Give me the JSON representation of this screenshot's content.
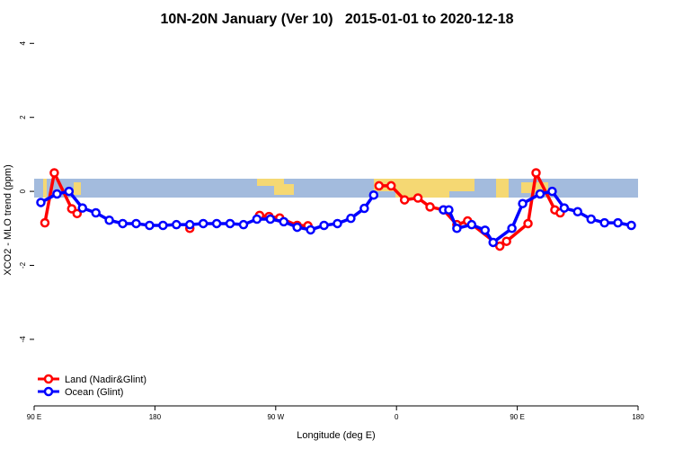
{
  "chart_data": {
    "type": "line",
    "title": "10N-20N January (Ver 10)   2015-01-01 to 2020-12-18",
    "xlabel": "Longitude (deg E)",
    "ylabel": "XCO2 - MLO trend (ppm)",
    "xlim": [
      90,
      540
    ],
    "xticks": [
      {
        "value": 90,
        "label": "90 E"
      },
      180,
      {
        "value": 270,
        "label": "90 W"
      },
      {
        "value": 360,
        "label": "0"
      },
      {
        "value": 450,
        "label": "90 E"
      },
      {
        "value": 540,
        "label": "180"
      }
    ],
    "ylim": [
      -5.75,
      4.25
    ],
    "yticks": [
      -4,
      -2,
      0,
      2,
      4
    ],
    "legend": "bottom-left",
    "series": [
      {
        "name": "Land (Nadir&Glint)",
        "color": "#ff0000",
        "x": [
          98,
          105,
          118,
          122,
          null,
          206,
          null,
          258,
          265,
          273,
          286,
          294,
          null,
          347,
          356,
          366,
          376,
          385,
          395,
          405,
          413,
          437,
          442,
          458,
          464,
          478,
          482
        ],
        "values": [
          -0.85,
          0.5,
          -0.47,
          -0.6,
          null,
          -1.0,
          null,
          -0.65,
          -0.68,
          -0.72,
          -0.92,
          -0.93,
          null,
          0.15,
          0.15,
          -0.23,
          -0.18,
          -0.42,
          -0.5,
          -0.9,
          -0.8,
          -1.48,
          -1.35,
          -0.87,
          0.5,
          -0.5,
          -0.58
        ]
      },
      {
        "name": "Ocean (Glint)",
        "color": "#0000ff",
        "x": [
          95,
          107,
          116,
          126,
          136,
          146,
          156,
          166,
          176,
          186,
          196,
          206,
          216,
          226,
          236,
          246,
          256,
          266,
          276,
          286,
          296,
          306,
          316,
          326,
          336,
          343,
          null,
          395,
          399,
          405,
          416,
          426,
          432,
          446,
          454,
          467,
          476,
          485,
          495,
          505,
          515,
          525,
          535
        ],
        "values": [
          -0.3,
          -0.07,
          0.0,
          -0.45,
          -0.58,
          -0.78,
          -0.87,
          -0.87,
          -0.92,
          -0.92,
          -0.9,
          -0.9,
          -0.87,
          -0.87,
          -0.87,
          -0.9,
          -0.75,
          -0.75,
          -0.82,
          -0.97,
          -1.04,
          -0.92,
          -0.87,
          -0.73,
          -0.46,
          -0.1,
          null,
          -0.5,
          -0.5,
          -1.0,
          -0.9,
          -1.05,
          -1.38,
          -1.0,
          -0.33,
          -0.07,
          0.0,
          -0.45,
          -0.55,
          -0.75,
          -0.85,
          -0.85,
          -0.92
        ]
      }
    ]
  }
}
